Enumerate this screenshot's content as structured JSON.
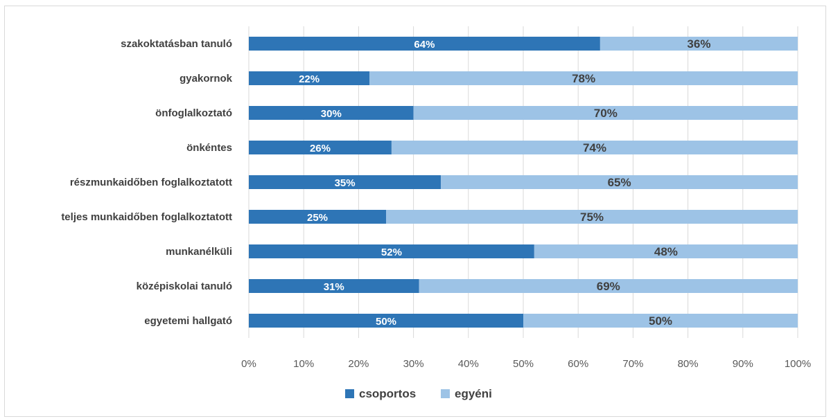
{
  "chart_data": {
    "type": "bar",
    "orientation": "horizontal",
    "stacked": true,
    "categories": [
      "szakoktatásban tanuló",
      "gyakornok",
      "önfoglalkoztató",
      "önkéntes",
      "részmunkaidőben foglalkoztatott",
      "teljes munkaidőben foglalkoztatott",
      "munkanélküli",
      "középiskolai tanuló",
      "egyetemi hallgató"
    ],
    "series": [
      {
        "name": "csoportos",
        "color": "#2e75b6",
        "values": [
          64,
          22,
          30,
          26,
          35,
          25,
          52,
          31,
          50
        ]
      },
      {
        "name": "egyéni",
        "color": "#9dc3e6",
        "values": [
          36,
          78,
          70,
          74,
          65,
          75,
          48,
          69,
          50
        ]
      }
    ],
    "xlim": [
      0,
      100
    ],
    "x_ticks": [
      "0%",
      "10%",
      "20%",
      "30%",
      "40%",
      "50%",
      "60%",
      "70%",
      "80%",
      "90%",
      "100%"
    ],
    "value_suffix": "%",
    "grid": true,
    "legend_position": "bottom"
  }
}
